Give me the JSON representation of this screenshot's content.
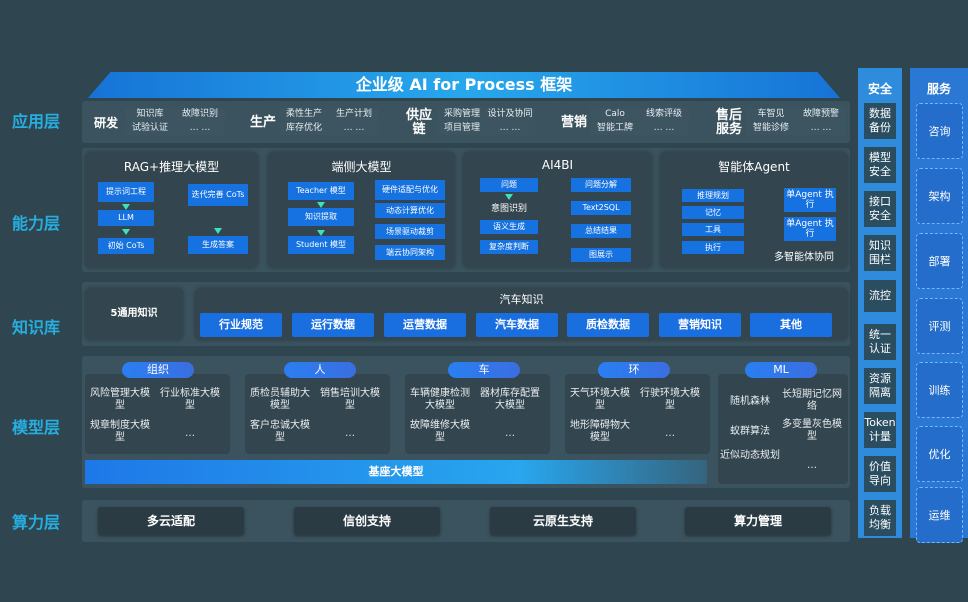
{
  "title": "企业级 AI for Process 框架",
  "layers": [
    "应用层",
    "能力层",
    "知识库",
    "模型层",
    "算力层"
  ],
  "app": [
    {
      "cat": "研发",
      "items": [
        "知识库",
        "故障识别",
        "试验认证",
        "… …"
      ]
    },
    {
      "cat": "生产",
      "items": [
        "柔性生产",
        "生产计划",
        "库存优化",
        "… …"
      ]
    },
    {
      "cat": "供应链",
      "items": [
        "采购管理",
        "设计及协同",
        "项目管理",
        "… …"
      ]
    },
    {
      "cat": "营销",
      "items": [
        "Calo",
        "线索评级",
        "智能工牌",
        "… …"
      ]
    },
    {
      "cat": "售后服务",
      "items": [
        "车智见",
        "故障预警",
        "智能诊修",
        "… …"
      ]
    }
  ],
  "capability": {
    "rag": {
      "title": "RAG+推理大模型",
      "items": [
        "提示词工程",
        "LLM",
        "初始 CoTs",
        "迭代完善 CoTs",
        "生成答案"
      ]
    },
    "edge": {
      "title": "端侧大模型",
      "items": [
        "Teacher 模型",
        "知识提取",
        "Student 模型",
        "硬件适配与优化",
        "动态计算优化",
        "场景驱动裁剪",
        "端云协同架构"
      ]
    },
    "ai4bi": {
      "title": "AI4BI",
      "items": [
        "问题",
        "意图识别",
        "语义生成",
        "复杂度判断",
        "问题分解",
        "Text2SQL",
        "总结结果",
        "图展示"
      ]
    },
    "agent": {
      "title": "智能体Agent",
      "items": [
        "推理规划",
        "记忆",
        "工具",
        "执行",
        "单Agent 执行",
        "单Agent 执行",
        "多智能体协同"
      ]
    }
  },
  "knowledge": {
    "general": "5通用知识",
    "auto_title": "汽车知识",
    "items": [
      "行业规范",
      "运行数据",
      "运营数据",
      "汽车数据",
      "质检数据",
      "营销知识",
      "其他"
    ]
  },
  "models": {
    "groups": [
      {
        "name": "组织",
        "items": [
          "风险管理大模型",
          "行业标准大模型",
          "规章制度大模型",
          "…"
        ]
      },
      {
        "name": "人",
        "items": [
          "质检员辅助大模型",
          "销售培训大模型",
          "客户忠诚大模型",
          "…"
        ]
      },
      {
        "name": "车",
        "items": [
          "车辆健康检测大模型",
          "器材库存配置大模型",
          "故障维修大模型",
          "…"
        ]
      },
      {
        "name": "环",
        "items": [
          "天气环境大模型",
          "行驶环境大模型",
          "地形障碍物大模型",
          "…"
        ]
      },
      {
        "name": "ML",
        "items": [
          "随机森林",
          "长短期记忆网络",
          "蚁群算法",
          "多变量灰色模型",
          "近似动态规划",
          "…"
        ]
      }
    ],
    "base": "基座大模型"
  },
  "compute": [
    "多云适配",
    "信创支持",
    "云原生支持",
    "算力管理"
  ],
  "security": {
    "title": "安全",
    "items": [
      "数据备份",
      "模型安全",
      "接口安全",
      "知识围栏",
      "流控",
      "统一认证",
      "资源隔离",
      "Token计量",
      "价值导向",
      "负载均衡"
    ]
  },
  "service": {
    "title": "服务",
    "items": [
      "咨询",
      "架构",
      "部署",
      "评测",
      "训练",
      "优化",
      "运维"
    ]
  }
}
